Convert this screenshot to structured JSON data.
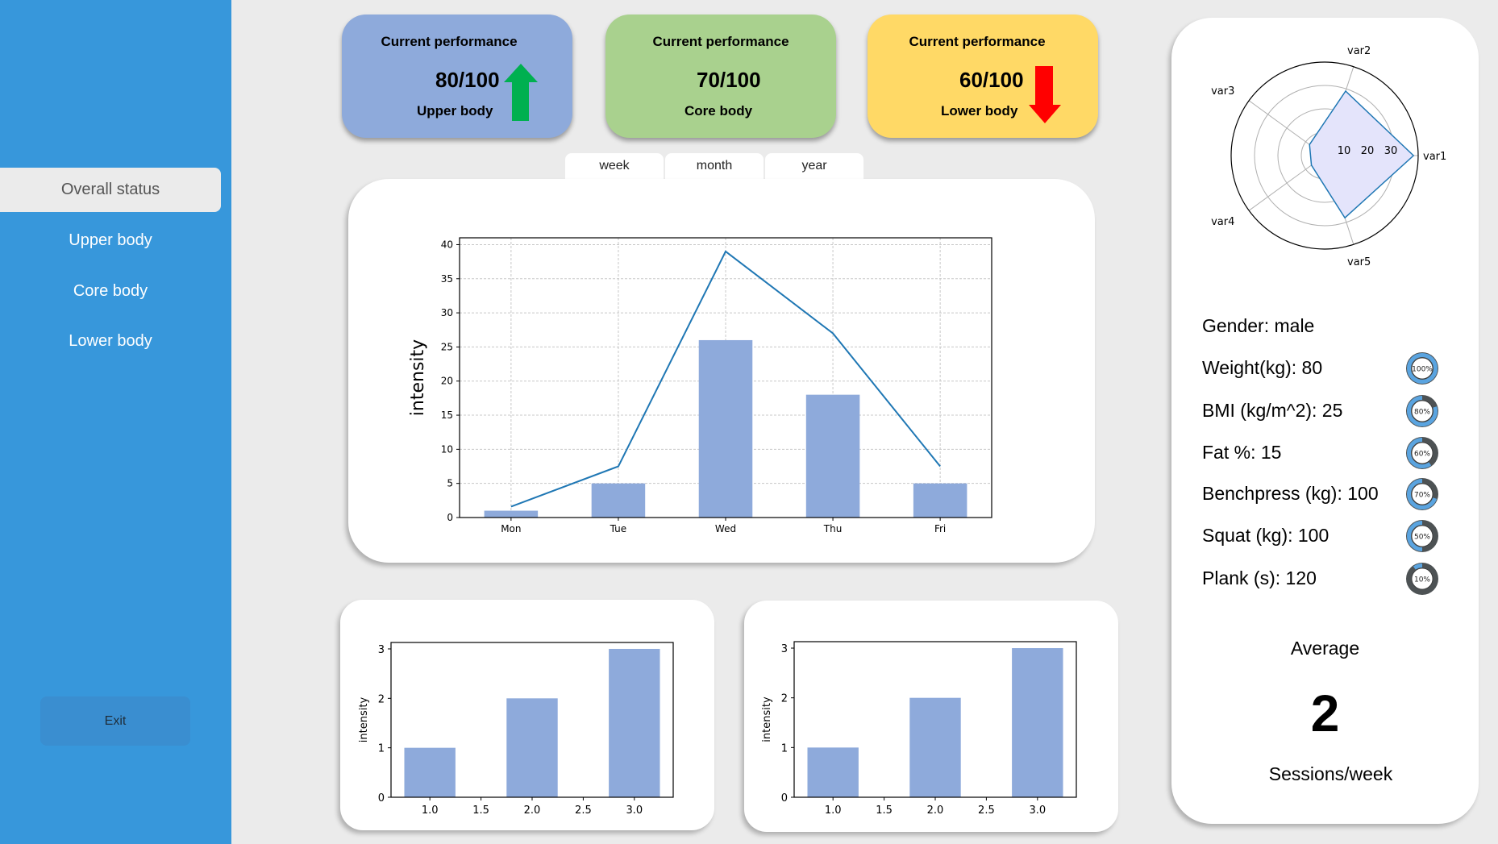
{
  "sidebar": {
    "items": [
      {
        "label": "Overall status",
        "active": true
      },
      {
        "label": "Upper body",
        "active": false
      },
      {
        "label": "Core body",
        "active": false
      },
      {
        "label": "Lower body",
        "active": false
      }
    ],
    "exit_label": "Exit",
    "color": "#3797db"
  },
  "kpis": [
    {
      "title": "Current performance",
      "value": "80/100",
      "label": "Upper body",
      "color": "#8eaadb",
      "trend": "up",
      "trend_color": "#00b050"
    },
    {
      "title": "Current performance",
      "value": "70/100",
      "label": "Core body",
      "color": "#a9d18e",
      "trend": "none"
    },
    {
      "title": "Current performance",
      "value": "60/100",
      "label": "Lower body",
      "color": "#ffd966",
      "trend": "down",
      "trend_color": "#ff0000"
    }
  ],
  "tabs": [
    {
      "label": "week"
    },
    {
      "label": "month"
    },
    {
      "label": "year"
    }
  ],
  "profile": {
    "stats": [
      {
        "label": "Gender: male"
      },
      {
        "label": "Weight(kg): 80",
        "percent": 100,
        "percent_label": "100%"
      },
      {
        "label": "BMI (kg/m^2): 25",
        "percent": 80,
        "percent_label": "80%"
      },
      {
        "label": "Fat %: 15",
        "percent": 60,
        "percent_label": "60%"
      },
      {
        "label": "Benchpress (kg): 100",
        "percent": 70,
        "percent_label": "70%"
      },
      {
        "label": "Squat (kg): 100",
        "percent": 50,
        "percent_label": "50%"
      },
      {
        "label": "Plank (s): 120",
        "percent": 10,
        "percent_label": "10%"
      }
    ],
    "average_title": "Average",
    "average_value": "2",
    "average_unit": "Sessions/week"
  },
  "chart_data": [
    {
      "id": "weekly-intensity",
      "type": "bar",
      "categories": [
        "Mon",
        "Tue",
        "Wed",
        "Thu",
        "Fri"
      ],
      "series": [
        {
          "name": "bars",
          "type": "bar",
          "values": [
            1,
            5,
            26,
            18,
            5
          ],
          "color": "#8eaadb"
        },
        {
          "name": "line",
          "type": "line",
          "values": [
            1.6,
            7.5,
            39,
            27,
            7.5
          ],
          "color": "#1f77b4"
        }
      ],
      "title": "",
      "xlabel": "",
      "ylabel": "intensity",
      "yticks": [
        0,
        5,
        10,
        15,
        20,
        25,
        30,
        35,
        40
      ],
      "ylim": [
        0,
        41
      ],
      "grid": true
    },
    {
      "id": "bottom-left",
      "type": "bar",
      "x": [
        1.0,
        2.0,
        3.0
      ],
      "values": [
        1,
        2,
        3
      ],
      "xticks": [
        "1.0",
        "1.5",
        "2.0",
        "2.5",
        "3.0"
      ],
      "yticks": [
        0,
        1,
        2,
        3
      ],
      "ylabel": "intensity",
      "xlim": [
        0.62,
        3.38
      ],
      "ylim": [
        0,
        3.13
      ],
      "grid": false
    },
    {
      "id": "bottom-right",
      "type": "bar",
      "x": [
        1.0,
        2.0,
        3.0
      ],
      "values": [
        1,
        2,
        3
      ],
      "xticks": [
        "1.0",
        "1.5",
        "2.0",
        "2.5",
        "3.0"
      ],
      "yticks": [
        0,
        1,
        2,
        3
      ],
      "ylabel": "intensity",
      "xlim": [
        0.62,
        3.38
      ],
      "ylim": [
        0,
        3.13
      ],
      "grid": false
    },
    {
      "id": "radar",
      "type": "radar",
      "categories": [
        "var1",
        "var2",
        "var3",
        "var4",
        "var5"
      ],
      "values": [
        38,
        29,
        8,
        7,
        28
      ],
      "rticks": [
        "10",
        "20",
        "30"
      ],
      "rmax": 40,
      "fill": "#e4e4fb",
      "stroke": "#1f77b4"
    }
  ]
}
